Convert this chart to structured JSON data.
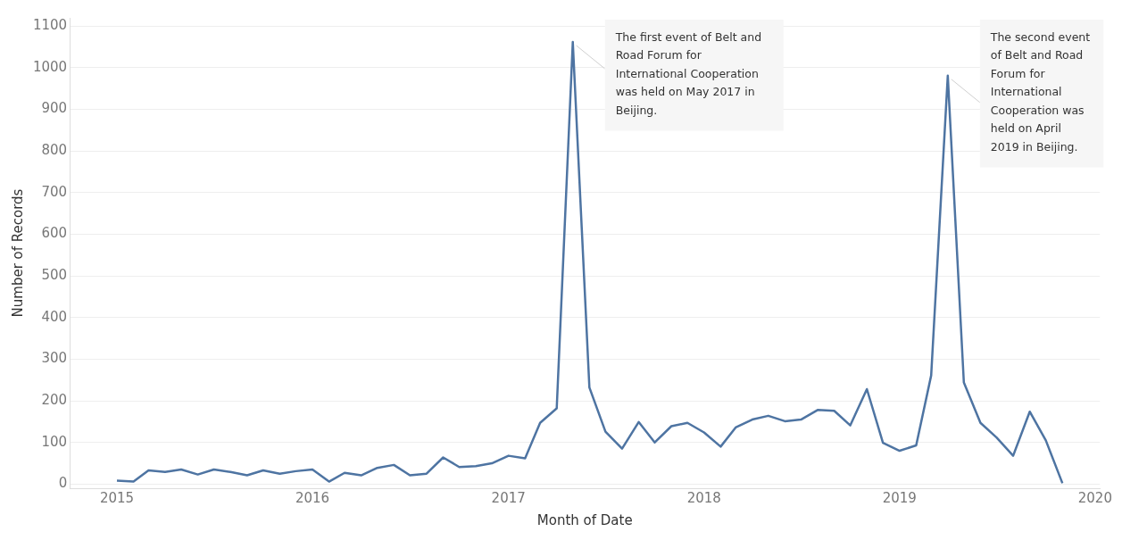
{
  "chart_data": {
    "type": "line",
    "xlabel": "Month of Date",
    "ylabel": "Number of Records",
    "x": [
      "2015-01",
      "2015-02",
      "2015-03",
      "2015-04",
      "2015-05",
      "2015-06",
      "2015-07",
      "2015-08",
      "2015-09",
      "2015-10",
      "2015-11",
      "2015-12",
      "2016-01",
      "2016-02",
      "2016-03",
      "2016-04",
      "2016-05",
      "2016-06",
      "2016-07",
      "2016-08",
      "2016-09",
      "2016-10",
      "2016-11",
      "2016-12",
      "2017-01",
      "2017-02",
      "2017-03",
      "2017-04",
      "2017-05",
      "2017-06",
      "2017-07",
      "2017-08",
      "2017-09",
      "2017-10",
      "2017-11",
      "2017-12",
      "2018-01",
      "2018-02",
      "2018-03",
      "2018-04",
      "2018-05",
      "2018-06",
      "2018-07",
      "2018-08",
      "2018-09",
      "2018-10",
      "2018-11",
      "2018-12",
      "2019-01",
      "2019-02",
      "2019-03",
      "2019-04",
      "2019-05",
      "2019-06",
      "2019-07",
      "2019-08",
      "2019-09",
      "2019-10",
      "2019-11"
    ],
    "series": [
      {
        "color": "#4e74a2",
        "values": [
          8,
          6,
          33,
          29,
          35,
          23,
          35,
          29,
          21,
          33,
          25,
          31,
          35,
          6,
          27,
          21,
          39,
          46,
          21,
          25,
          64,
          41,
          43,
          50,
          68,
          62,
          147,
          182,
          1062,
          232,
          126,
          85,
          149,
          100,
          139,
          147,
          124,
          90,
          136,
          155,
          164,
          151,
          155,
          178,
          176,
          141,
          228,
          99,
          80,
          93,
          261,
          981,
          244,
          147,
          112,
          68,
          174,
          105,
          2
        ]
      }
    ],
    "xlim": [
      "2014-10-05",
      "2020-01-10"
    ],
    "xticks": [
      "2015",
      "2016",
      "2017",
      "2018",
      "2019",
      "2020"
    ],
    "ylim": [
      -10,
      1120
    ],
    "yticks": [
      0,
      100,
      200,
      300,
      400,
      500,
      600,
      700,
      800,
      900,
      1000,
      1100
    ],
    "grid": "y",
    "legend": false,
    "marker": "none",
    "line_style": "solid",
    "annotations": [
      {
        "text": "The first event of Belt and Road Forum for International Cooperation was held on May 2017 in Beijing.",
        "x": "2017-05",
        "y": 1062
      },
      {
        "text": "The second event of Belt and Road Forum for International Cooperation was held on April 2019 in Beijing.",
        "x": "2019-04",
        "y": 981
      }
    ]
  }
}
